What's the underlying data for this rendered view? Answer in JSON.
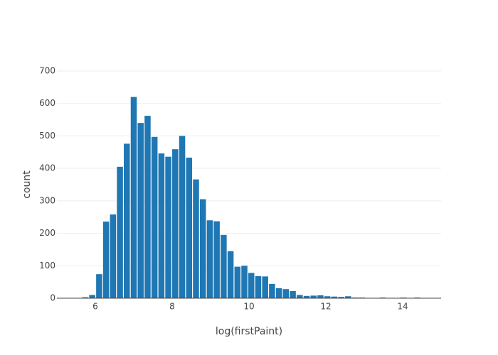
{
  "chart_data": {
    "type": "histogram",
    "x_label": "log(firstPaint)",
    "y_label": "count",
    "color": "#1f77b4",
    "grid": true,
    "bins": [
      5.65,
      5.83,
      6.01,
      6.19,
      6.37,
      6.55,
      6.73,
      6.91,
      7.09,
      7.27,
      7.45,
      7.63,
      7.81,
      7.99,
      8.17,
      8.35,
      8.53,
      8.71,
      8.89,
      9.07,
      9.25,
      9.43,
      9.61,
      9.79,
      9.97,
      10.15,
      10.33,
      10.51,
      10.69,
      10.87,
      11.05,
      11.23,
      11.41,
      11.59,
      11.77,
      11.95,
      12.13,
      12.31,
      12.49,
      12.67,
      12.85,
      13.03,
      13.21,
      13.39,
      13.57,
      13.75,
      13.93,
      14.11,
      14.29,
      14.47,
      14.65
    ],
    "values": [
      3,
      10,
      74,
      236,
      258,
      405,
      476,
      620,
      540,
      562,
      497,
      446,
      436,
      459,
      500,
      433,
      366,
      305,
      240,
      237,
      195,
      145,
      97,
      100,
      78,
      68,
      67,
      44,
      31,
      28,
      22,
      10,
      7,
      8,
      9,
      6,
      5,
      4,
      6,
      2,
      2,
      1,
      1,
      2,
      1,
      1,
      2,
      1,
      2,
      1
    ],
    "xlim": [
      5,
      15
    ],
    "xticks": [
      6,
      8,
      10,
      12,
      14
    ],
    "ylim": [
      0,
      700
    ],
    "yticks": [
      0,
      100,
      200,
      300,
      400,
      500,
      600,
      700
    ]
  }
}
